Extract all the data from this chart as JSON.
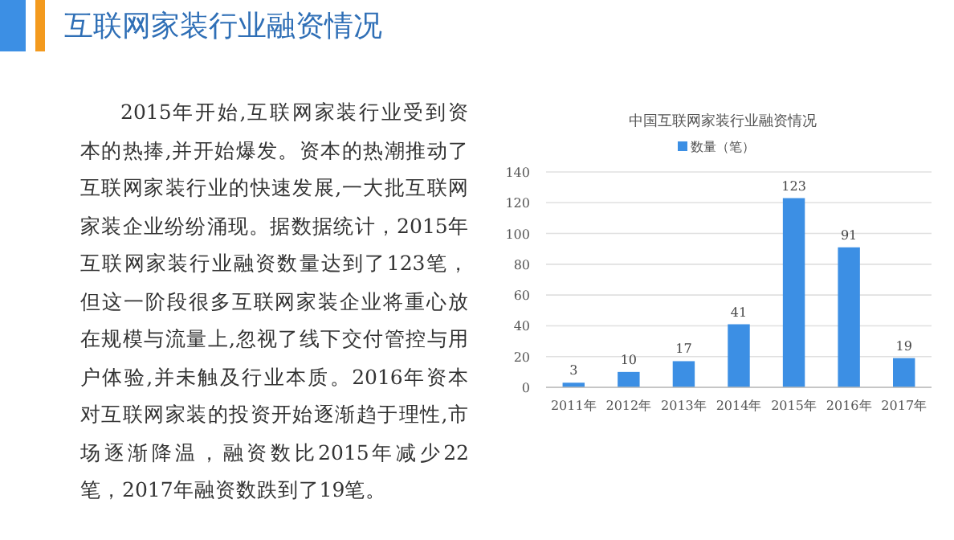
{
  "chart_data": {
    "type": "bar",
    "title": "互联网家装行业融资情况",
    "subtitle": "中国互联网家装行业融资情况",
    "categories": [
      "2011年",
      "2012年",
      "2013年",
      "2014年",
      "2015年",
      "2016年",
      "2017年"
    ],
    "series": [
      {
        "name": "数量（笔）",
        "color": "#3c8fe4",
        "values": [
          3,
          10,
          17,
          41,
          123,
          91,
          19
        ]
      }
    ],
    "ylim": [
      0,
      140
    ],
    "yticks": [
      0,
      20,
      40,
      60,
      80,
      100,
      120,
      140
    ],
    "grid": "y",
    "legend": "top",
    "data_labels": true,
    "annotations": [
      "2015年开始,互联网家装行业受到资本的热捧,并开始爆发。资本的热潮推动了互联网家装行业的快速发展,一大批互联网家装企业纷纷涌现。据数据统计，2015年互联网家装行业融资数量达到了123笔，但这一阶段很多互联网家装企业将重心放在规模与流量上,忽视了线下交付管控与用户体验,并未触及行业本质。2016年资本对互联网家装的投资开始逐渐趋于理性,市场逐渐降温，融资数比2015年减少22笔，2017年融资数跌到了19笔。"
    ]
  }
}
